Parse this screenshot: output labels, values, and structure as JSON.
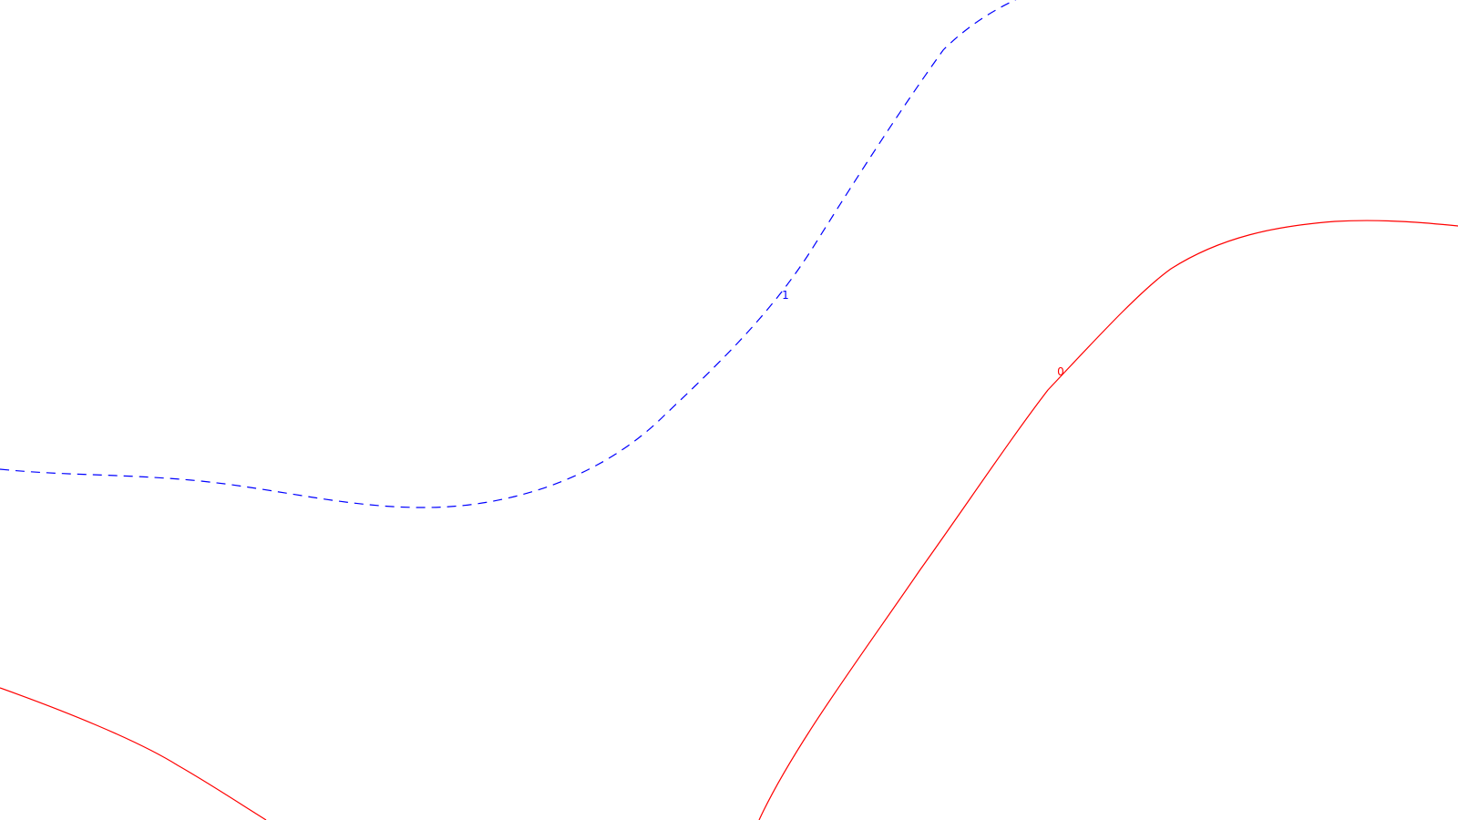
{
  "contours": [
    {
      "level_label": "1",
      "color": "#0000ff",
      "style": "dashed"
    },
    {
      "level_label": "0",
      "color": "#ff0000",
      "style": "solid"
    }
  ]
}
